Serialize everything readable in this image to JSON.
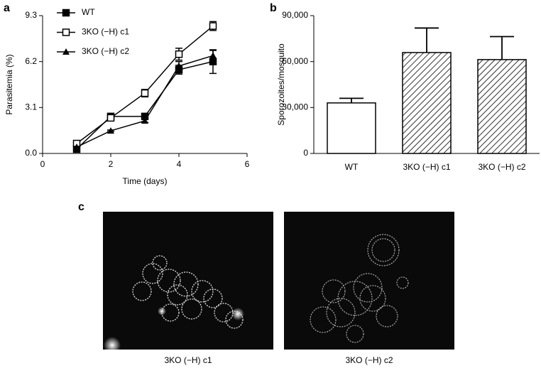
{
  "chart_data": [
    {
      "type": "line",
      "panel_label": "a",
      "x_label": "Time (days)",
      "y_label": "Parasitemia (%)",
      "x": [
        1,
        2,
        3,
        4,
        5
      ],
      "series": [
        {
          "name": "WT",
          "color": "#000000",
          "marker": "square",
          "values": [
            0.29,
            2.5,
            2.5,
            5.65,
            6.2
          ],
          "errors": [
            0.1,
            0.1,
            0.1,
            0.3,
            0.8
          ]
        },
        {
          "name": "3KO (−H) c1",
          "color": "#000000",
          "marker": "open-square",
          "values": [
            0.67,
            2.4,
            4.07,
            6.7,
            8.6
          ],
          "errors": [
            0.1,
            0.1,
            0.25,
            0.4,
            0.3
          ]
        },
        {
          "name": "3KO (−H) c2",
          "color": "#000000",
          "marker": "triangle",
          "values": [
            0.43,
            1.53,
            2.2,
            5.9,
            6.6
          ],
          "errors": [
            0.05,
            0.05,
            0.1,
            0.3,
            0.35
          ]
        }
      ],
      "xlim": [
        0,
        6
      ],
      "xticks": [
        0,
        2,
        4,
        6
      ],
      "ylim": [
        0,
        9.3
      ],
      "yticks": [
        {
          "value": 0,
          "label": "0.0"
        },
        3.1,
        6.2,
        9.3
      ],
      "legend": "upper left"
    },
    {
      "type": "bar",
      "panel_label": "b",
      "y_label": "Sporozoites/mosquito",
      "categories": [
        "WT",
        "3KO (−H) c1",
        "3KO (−H) c2"
      ],
      "values": [
        33000,
        65900,
        61300
      ],
      "errors": [
        3000,
        16000,
        15000
      ],
      "hatch": [
        false,
        true,
        true
      ],
      "color": "#000000",
      "ylim": [
        0,
        90000
      ],
      "yticks": [
        0,
        {
          "value": 30000,
          "label": "30,000"
        },
        {
          "value": 60000,
          "label": "60,000"
        },
        {
          "value": 90000,
          "label": "90,000"
        }
      ]
    }
  ],
  "images": {
    "panel_label": "c",
    "captions": [
      "3KO (−H) c1",
      "3KO (−H) c2"
    ]
  }
}
